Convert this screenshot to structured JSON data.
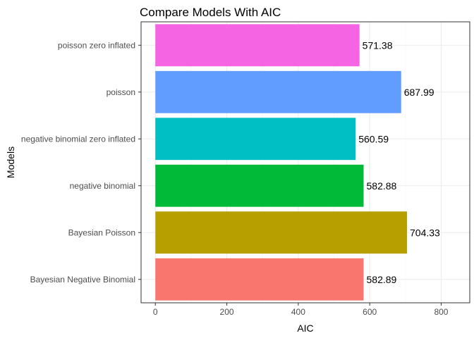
{
  "chart_data": {
    "type": "bar",
    "orientation": "horizontal",
    "title": "Compare Models With AIC",
    "xlabel": "AIC",
    "ylabel": "Models",
    "categories": [
      "Bayesian Negative Binomial",
      "Bayesian Poisson",
      "negative binomial",
      "negative binomial zero inflated",
      "poisson",
      "poisson zero inflated"
    ],
    "values": [
      582.89,
      704.33,
      582.88,
      560.59,
      687.99,
      571.38
    ],
    "data_labels": [
      "582.89",
      "704.33",
      "582.88",
      "560.59",
      "687.99",
      "571.38"
    ],
    "colors": [
      "#F8766D",
      "#B79F00",
      "#00BA38",
      "#00BFC4",
      "#619CFF",
      "#F564E3"
    ],
    "xlim": [
      -40,
      880
    ],
    "x_ticks": [
      0,
      200,
      400,
      600,
      800
    ],
    "x_tick_labels": [
      "0",
      "200",
      "400",
      "600",
      "800"
    ],
    "grid": true,
    "legend": "none"
  }
}
